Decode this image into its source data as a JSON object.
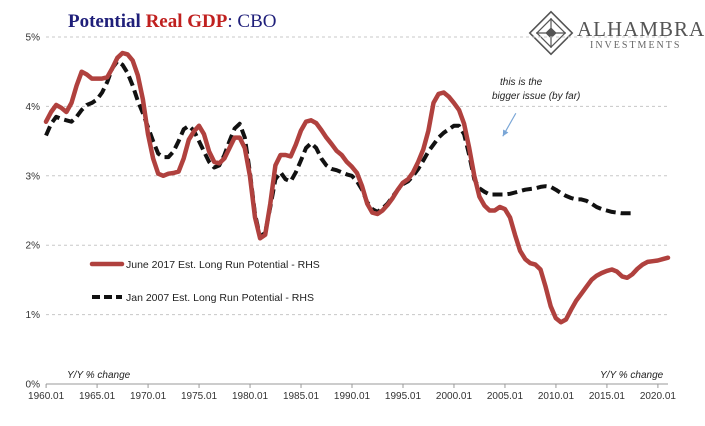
{
  "title": {
    "part1": "Potential ",
    "part2": "Real GDP",
    "part3": ":  CBO"
  },
  "logo": {
    "name": "ALHAMBRA",
    "sub": "INVESTMENTS",
    "icon": "diamond-lattice-icon"
  },
  "chart_data": {
    "type": "line",
    "title": "Potential Real GDP:  CBO",
    "xlabel": "",
    "ylabel": "",
    "xlim": [
      1960.0,
      2021.0
    ],
    "ylim": [
      0,
      5
    ],
    "x_ticks": [
      "1960.01",
      "1965.01",
      "1970.01",
      "1975.01",
      "1980.01",
      "1985.01",
      "1990.01",
      "1995.01",
      "2000.01",
      "2005.01",
      "2010.01",
      "2015.01",
      "2020.01"
    ],
    "y_ticks": [
      "0%",
      "1%",
      "2%",
      "3%",
      "4%",
      "5%"
    ],
    "bottom_left_label": "Y/Y % change",
    "bottom_right_label": "Y/Y % change",
    "grid": "horizontal-dashed",
    "legend_position": "left-middle",
    "annotation": {
      "lines": [
        "this is the",
        "bigger issue (by far)"
      ],
      "points_to": [
        2004.8,
        3.57
      ]
    },
    "series": [
      {
        "name": "June 2017 Est. Long Run Potential - RHS",
        "color": "#b0413e",
        "style": "solid",
        "points": [
          [
            1960.0,
            3.78
          ],
          [
            1960.5,
            3.92
          ],
          [
            1961.0,
            4.02
          ],
          [
            1961.5,
            3.98
          ],
          [
            1962.0,
            3.92
          ],
          [
            1962.5,
            4.05
          ],
          [
            1963.0,
            4.3
          ],
          [
            1963.5,
            4.5
          ],
          [
            1964.0,
            4.46
          ],
          [
            1964.5,
            4.4
          ],
          [
            1965.0,
            4.4
          ],
          [
            1965.5,
            4.4
          ],
          [
            1966.0,
            4.42
          ],
          [
            1966.5,
            4.55
          ],
          [
            1967.0,
            4.7
          ],
          [
            1967.5,
            4.77
          ],
          [
            1968.0,
            4.75
          ],
          [
            1968.5,
            4.66
          ],
          [
            1969.0,
            4.45
          ],
          [
            1969.5,
            4.1
          ],
          [
            1970.0,
            3.6
          ],
          [
            1970.5,
            3.25
          ],
          [
            1971.0,
            3.03
          ],
          [
            1971.5,
            3.0
          ],
          [
            1972.0,
            3.03
          ],
          [
            1972.5,
            3.04
          ],
          [
            1973.0,
            3.06
          ],
          [
            1973.5,
            3.25
          ],
          [
            1974.0,
            3.52
          ],
          [
            1974.5,
            3.64
          ],
          [
            1975.0,
            3.72
          ],
          [
            1975.5,
            3.6
          ],
          [
            1976.0,
            3.35
          ],
          [
            1976.5,
            3.2
          ],
          [
            1977.0,
            3.18
          ],
          [
            1977.5,
            3.25
          ],
          [
            1978.0,
            3.4
          ],
          [
            1978.5,
            3.55
          ],
          [
            1979.0,
            3.55
          ],
          [
            1979.5,
            3.4
          ],
          [
            1980.0,
            3.0
          ],
          [
            1980.5,
            2.4
          ],
          [
            1981.0,
            2.1
          ],
          [
            1981.5,
            2.15
          ],
          [
            1982.0,
            2.6
          ],
          [
            1982.5,
            3.15
          ],
          [
            1983.0,
            3.3
          ],
          [
            1983.5,
            3.3
          ],
          [
            1984.0,
            3.28
          ],
          [
            1984.5,
            3.45
          ],
          [
            1985.0,
            3.65
          ],
          [
            1985.5,
            3.78
          ],
          [
            1986.0,
            3.8
          ],
          [
            1986.5,
            3.76
          ],
          [
            1987.0,
            3.66
          ],
          [
            1987.5,
            3.55
          ],
          [
            1988.0,
            3.46
          ],
          [
            1988.5,
            3.36
          ],
          [
            1989.0,
            3.3
          ],
          [
            1989.5,
            3.2
          ],
          [
            1990.0,
            3.13
          ],
          [
            1990.5,
            3.04
          ],
          [
            1991.0,
            2.85
          ],
          [
            1991.5,
            2.6
          ],
          [
            1992.0,
            2.47
          ],
          [
            1992.5,
            2.45
          ],
          [
            1993.0,
            2.5
          ],
          [
            1993.5,
            2.58
          ],
          [
            1994.0,
            2.68
          ],
          [
            1994.5,
            2.8
          ],
          [
            1995.0,
            2.9
          ],
          [
            1995.5,
            2.95
          ],
          [
            1996.0,
            3.05
          ],
          [
            1996.5,
            3.2
          ],
          [
            1997.0,
            3.38
          ],
          [
            1997.5,
            3.65
          ],
          [
            1998.0,
            4.05
          ],
          [
            1998.5,
            4.18
          ],
          [
            1999.0,
            4.2
          ],
          [
            1999.5,
            4.14
          ],
          [
            2000.0,
            4.05
          ],
          [
            2000.5,
            3.95
          ],
          [
            2001.0,
            3.75
          ],
          [
            2001.5,
            3.4
          ],
          [
            2002.0,
            3.0
          ],
          [
            2002.5,
            2.7
          ],
          [
            2003.0,
            2.57
          ],
          [
            2003.5,
            2.5
          ],
          [
            2004.0,
            2.5
          ],
          [
            2004.5,
            2.55
          ],
          [
            2005.0,
            2.52
          ],
          [
            2005.5,
            2.4
          ],
          [
            2006.0,
            2.15
          ],
          [
            2006.5,
            1.92
          ],
          [
            2007.0,
            1.8
          ],
          [
            2007.5,
            1.74
          ],
          [
            2008.0,
            1.72
          ],
          [
            2008.5,
            1.65
          ],
          [
            2009.0,
            1.4
          ],
          [
            2009.5,
            1.12
          ],
          [
            2010.0,
            0.95
          ],
          [
            2010.5,
            0.89
          ],
          [
            2011.0,
            0.93
          ],
          [
            2011.5,
            1.07
          ],
          [
            2012.0,
            1.2
          ],
          [
            2012.5,
            1.3
          ],
          [
            2013.0,
            1.4
          ],
          [
            2013.5,
            1.5
          ],
          [
            2014.0,
            1.56
          ],
          [
            2014.5,
            1.6
          ],
          [
            2015.0,
            1.63
          ],
          [
            2015.5,
            1.65
          ],
          [
            2016.0,
            1.62
          ],
          [
            2016.5,
            1.55
          ],
          [
            2017.0,
            1.53
          ],
          [
            2017.5,
            1.58
          ],
          [
            2018.0,
            1.66
          ],
          [
            2018.5,
            1.72
          ],
          [
            2019.0,
            1.76
          ],
          [
            2019.5,
            1.77
          ],
          [
            2020.0,
            1.78
          ],
          [
            2020.5,
            1.8
          ],
          [
            2021.0,
            1.82
          ]
        ]
      },
      {
        "name": "Jan 2007 Est. Long Run Potential - RHS",
        "color": "#111111",
        "style": "dashed",
        "points": [
          [
            1960.0,
            3.58
          ],
          [
            1960.5,
            3.75
          ],
          [
            1961.0,
            3.85
          ],
          [
            1961.5,
            3.82
          ],
          [
            1962.0,
            3.8
          ],
          [
            1962.5,
            3.78
          ],
          [
            1963.0,
            3.85
          ],
          [
            1963.5,
            3.95
          ],
          [
            1964.0,
            4.02
          ],
          [
            1964.5,
            4.05
          ],
          [
            1965.0,
            4.1
          ],
          [
            1965.5,
            4.2
          ],
          [
            1966.0,
            4.35
          ],
          [
            1966.5,
            4.55
          ],
          [
            1967.0,
            4.65
          ],
          [
            1967.5,
            4.6
          ],
          [
            1968.0,
            4.48
          ],
          [
            1968.5,
            4.3
          ],
          [
            1969.0,
            4.08
          ],
          [
            1969.5,
            3.9
          ],
          [
            1970.0,
            3.7
          ],
          [
            1970.5,
            3.5
          ],
          [
            1971.0,
            3.32
          ],
          [
            1971.5,
            3.27
          ],
          [
            1972.0,
            3.27
          ],
          [
            1972.5,
            3.35
          ],
          [
            1973.0,
            3.5
          ],
          [
            1973.5,
            3.67
          ],
          [
            1974.0,
            3.72
          ],
          [
            1974.5,
            3.65
          ],
          [
            1975.0,
            3.5
          ],
          [
            1975.5,
            3.35
          ],
          [
            1976.0,
            3.2
          ],
          [
            1976.5,
            3.12
          ],
          [
            1977.0,
            3.15
          ],
          [
            1977.5,
            3.3
          ],
          [
            1978.0,
            3.5
          ],
          [
            1978.5,
            3.68
          ],
          [
            1979.0,
            3.75
          ],
          [
            1979.5,
            3.55
          ],
          [
            1980.0,
            3.05
          ],
          [
            1980.5,
            2.45
          ],
          [
            1981.0,
            2.12
          ],
          [
            1981.5,
            2.18
          ],
          [
            1982.0,
            2.55
          ],
          [
            1982.5,
            2.95
          ],
          [
            1983.0,
            3.05
          ],
          [
            1983.5,
            2.95
          ],
          [
            1984.0,
            2.92
          ],
          [
            1984.5,
            3.05
          ],
          [
            1985.0,
            3.22
          ],
          [
            1985.5,
            3.4
          ],
          [
            1986.0,
            3.47
          ],
          [
            1986.5,
            3.4
          ],
          [
            1987.0,
            3.25
          ],
          [
            1987.5,
            3.15
          ],
          [
            1988.0,
            3.1
          ],
          [
            1988.5,
            3.08
          ],
          [
            1989.0,
            3.05
          ],
          [
            1989.5,
            3.02
          ],
          [
            1990.0,
            3.0
          ],
          [
            1990.5,
            2.92
          ],
          [
            1991.0,
            2.8
          ],
          [
            1991.5,
            2.62
          ],
          [
            1992.0,
            2.52
          ],
          [
            1992.5,
            2.48
          ],
          [
            1993.0,
            2.53
          ],
          [
            1993.5,
            2.6
          ],
          [
            1994.0,
            2.7
          ],
          [
            1994.5,
            2.8
          ],
          [
            1995.0,
            2.88
          ],
          [
            1995.5,
            2.92
          ],
          [
            1996.0,
            3.0
          ],
          [
            1996.5,
            3.1
          ],
          [
            1997.0,
            3.22
          ],
          [
            1997.5,
            3.35
          ],
          [
            1998.0,
            3.45
          ],
          [
            1998.5,
            3.55
          ],
          [
            1999.0,
            3.62
          ],
          [
            1999.5,
            3.67
          ],
          [
            2000.0,
            3.72
          ],
          [
            2000.5,
            3.72
          ],
          [
            2001.0,
            3.6
          ],
          [
            2001.5,
            3.3
          ],
          [
            2002.0,
            2.95
          ],
          [
            2002.5,
            2.82
          ],
          [
            2003.0,
            2.77
          ],
          [
            2003.5,
            2.73
          ],
          [
            2004.0,
            2.73
          ],
          [
            2004.5,
            2.73
          ],
          [
            2005.0,
            2.73
          ],
          [
            2005.5,
            2.74
          ],
          [
            2006.0,
            2.76
          ],
          [
            2006.5,
            2.78
          ],
          [
            2007.0,
            2.8
          ],
          [
            2007.5,
            2.81
          ],
          [
            2008.0,
            2.82
          ],
          [
            2008.5,
            2.84
          ],
          [
            2009.0,
            2.85
          ],
          [
            2009.5,
            2.84
          ],
          [
            2010.0,
            2.8
          ],
          [
            2010.5,
            2.75
          ],
          [
            2011.0,
            2.71
          ],
          [
            2011.5,
            2.68
          ],
          [
            2012.0,
            2.66
          ],
          [
            2012.5,
            2.66
          ],
          [
            2013.0,
            2.64
          ],
          [
            2013.5,
            2.6
          ],
          [
            2014.0,
            2.55
          ],
          [
            2014.5,
            2.52
          ],
          [
            2015.0,
            2.5
          ],
          [
            2015.5,
            2.48
          ],
          [
            2016.0,
            2.47
          ],
          [
            2016.5,
            2.46
          ],
          [
            2017.0,
            2.46
          ],
          [
            2017.5,
            2.46
          ]
        ]
      }
    ]
  }
}
